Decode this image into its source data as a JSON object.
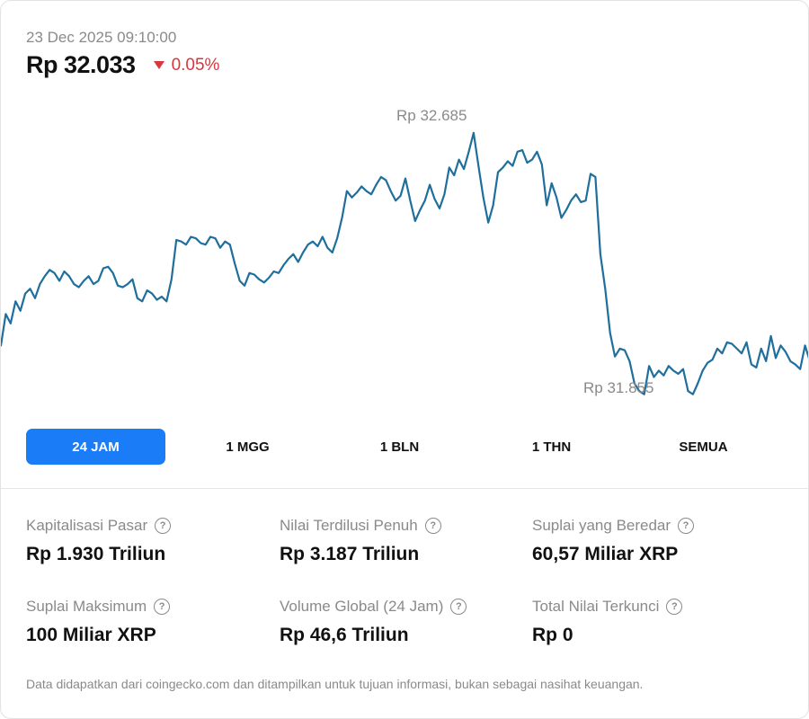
{
  "header": {
    "timestamp": "23 Dec 2025 09:10:00",
    "price": "Rp 32.033",
    "change": "0.05%",
    "change_direction": "down",
    "change_color": "#d9363e"
  },
  "chart_data": {
    "type": "line",
    "high_label": "Rp 32.685",
    "low_label": "Rp 31.855",
    "ylim": [
      31820,
      32790
    ],
    "line_color": "#1f6f9c",
    "values": [
      32010,
      32110,
      32080,
      32150,
      32120,
      32175,
      32190,
      32160,
      32205,
      32230,
      32250,
      32240,
      32215,
      32245,
      32230,
      32205,
      32195,
      32215,
      32230,
      32205,
      32215,
      32255,
      32260,
      32240,
      32200,
      32195,
      32205,
      32220,
      32160,
      32150,
      32185,
      32175,
      32155,
      32165,
      32150,
      32220,
      32345,
      32340,
      32330,
      32355,
      32350,
      32335,
      32330,
      32355,
      32350,
      32320,
      32340,
      32330,
      32270,
      32215,
      32200,
      32240,
      32235,
      32220,
      32210,
      32225,
      32245,
      32240,
      32265,
      32285,
      32300,
      32275,
      32305,
      32330,
      32340,
      32325,
      32355,
      32320,
      32305,
      32350,
      32415,
      32500,
      32480,
      32495,
      32515,
      32500,
      32490,
      32520,
      32545,
      32535,
      32500,
      32470,
      32485,
      32540,
      32470,
      32405,
      32440,
      32470,
      32520,
      32475,
      32445,
      32490,
      32575,
      32550,
      32600,
      32570,
      32625,
      32685,
      32580,
      32480,
      32400,
      32455,
      32560,
      32575,
      32595,
      32580,
      32625,
      32630,
      32590,
      32600,
      32625,
      32585,
      32455,
      32525,
      32480,
      32415,
      32440,
      32470,
      32490,
      32465,
      32470,
      32555,
      32545,
      32300,
      32190,
      32050,
      31975,
      32000,
      31995,
      31960,
      31890,
      31865,
      31855,
      31945,
      31910,
      31930,
      31915,
      31945,
      31930,
      31920,
      31935,
      31865,
      31855,
      31890,
      31930,
      31955,
      31965,
      32000,
      31985,
      32020,
      32015,
      32000,
      31985,
      32020,
      31950,
      31940,
      32000,
      31960,
      32040,
      31970,
      32010,
      31990,
      31960,
      31950,
      31935,
      32010,
      31960
    ]
  },
  "tabs": [
    {
      "label": "24 JAM",
      "active": true
    },
    {
      "label": "1 MGG",
      "active": false
    },
    {
      "label": "1 BLN",
      "active": false
    },
    {
      "label": "1 THN",
      "active": false
    },
    {
      "label": "SEMUA",
      "active": false
    }
  ],
  "stats": [
    {
      "label": "Kapitalisasi Pasar",
      "value": "Rp 1.930 Triliun"
    },
    {
      "label": "Nilai Terdilusi Penuh",
      "value": "Rp 3.187 Triliun"
    },
    {
      "label": "Suplai yang Beredar",
      "value": "60,57 Miliar XRP"
    },
    {
      "label": "Suplai Maksimum",
      "value": "100 Miliar XRP"
    },
    {
      "label": "Volume Global (24 Jam)",
      "value": "Rp 46,6 Triliun"
    },
    {
      "label": "Total Nilai Terkunci",
      "value": "Rp 0"
    }
  ],
  "help_icon": "question-circle-icon",
  "footer": "Data didapatkan dari coingecko.com dan ditampilkan untuk tujuan informasi, bukan sebagai nasihat keuangan."
}
